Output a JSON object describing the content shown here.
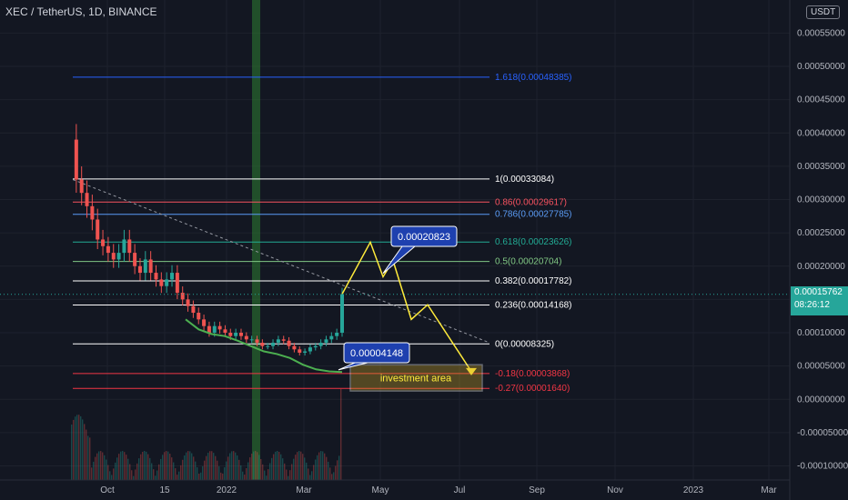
{
  "header": {
    "title": "XEC / TetherUS, 1D, BINANCE",
    "currency_button": "USDT"
  },
  "price_badge": {
    "price": "0.00015762",
    "countdown": "08:26:12"
  },
  "colors": {
    "background": "#131722",
    "grid": "#1e222d",
    "accent": "#26a69a"
  },
  "chart_data": {
    "type": "candlestick",
    "title": "XEC / TetherUS, 1D, BINANCE",
    "y_axis": {
      "ticks": [
        "0.00055000",
        "0.00050000",
        "0.00045000",
        "0.00040000",
        "0.00035000",
        "0.00030000",
        "0.00025000",
        "0.00020000",
        "0.00015000",
        "0.00010000",
        "0.00005000",
        "0.00000000",
        "-0.00005000",
        "-0.00010000"
      ],
      "tick_values": [
        0.00055,
        0.0005,
        0.00045,
        0.0004,
        0.00035,
        0.0003,
        0.00025,
        0.0002,
        0.00015,
        0.0001,
        5e-05,
        0,
        -5e-05,
        -0.0001
      ],
      "range": [
        -0.0001,
        0.00056
      ]
    },
    "x_axis": {
      "ticks": [
        "Oct",
        "15",
        "2022",
        "Mar",
        "May",
        "Jul",
        "Sep",
        "Nov",
        "2023",
        "Mar"
      ]
    },
    "fib_levels": [
      {
        "label": "1.618(0.00048385)",
        "value": 0.00048385,
        "color": "#2962ff"
      },
      {
        "label": "1(0.00033084)",
        "value": 0.00033084,
        "color": "#ffffff"
      },
      {
        "label": "0.86(0.00029617)",
        "value": 0.00029617,
        "color": "#f7525f"
      },
      {
        "label": "0.786(0.00027785)",
        "value": 0.00027785,
        "color": "#5b9cf6"
      },
      {
        "label": "0.618(0.00023626)",
        "value": 0.00023626,
        "color": "#22ab94"
      },
      {
        "label": "0.5(0.00020704)",
        "value": 0.00020704,
        "color": "#81c784"
      },
      {
        "label": "0.382(0.00017782)",
        "value": 0.00017782,
        "color": "#ffffff"
      },
      {
        "label": "0.236(0.00014168)",
        "value": 0.00014168,
        "color": "#ffffff"
      },
      {
        "label": "0(0.00008325)",
        "value": 8.325e-05,
        "color": "#ffffff"
      },
      {
        "label": "-0.18(0.00003868)",
        "value": 3.868e-05,
        "color": "#f23645"
      },
      {
        "label": "-0.27(0.00001640)",
        "value": 1.64e-05,
        "color": "#f23645"
      }
    ],
    "callouts": [
      {
        "text": "0.00020823",
        "value": 0.00020823
      },
      {
        "text": "0.00004148",
        "value": 4.148e-05
      }
    ],
    "zone": {
      "label": "investment area",
      "top": 5.2e-05,
      "bottom": 1.25e-05
    },
    "current_price": 0.00015762,
    "price_path": [
      0.00039,
      0.00033,
      0.00031,
      0.00029,
      0.00027,
      0.00024,
      0.00023,
      0.00022,
      0.00021,
      0.00022,
      0.00024,
      0.00022,
      0.0002,
      0.00019,
      0.00021,
      0.00019,
      0.00018,
      0.00017,
      0.00018,
      0.00019,
      0.00016,
      0.00015,
      0.00014,
      0.00013,
      0.00012,
      0.00011,
      0.0001,
      0.00011,
      0.000105,
      0.0001,
      9.5e-05,
      0.0001,
      9.5e-05,
      9e-05,
      9e-05,
      8.5e-05,
      8e-05,
      8e-05,
      8.5e-05,
      9e-05,
      8.8e-05,
      8e-05,
      7.5e-05,
      7e-05,
      7.2e-05,
      7.8e-05,
      8e-05,
      8.5e-05,
      9e-05,
      9.5e-05,
      0.0001,
      0.000158
    ],
    "moving_average": [
      0.00012,
      0.000105,
      9.8e-05,
      9.5e-05,
      8.8e-05,
      8e-05,
      7.2e-05,
      6.8e-05,
      6.2e-05,
      5.2e-05,
      4.5e-05,
      4.2e-05,
      4.1e-05
    ],
    "projection_path": [
      0.000158,
      0.000236,
      0.000184,
      0.00020823,
      0.00012,
      0.000142,
      4.2e-05
    ]
  }
}
